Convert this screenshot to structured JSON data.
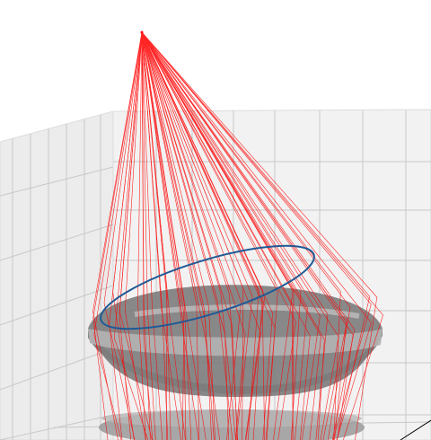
{
  "scene": {
    "description_labels": [],
    "colors": {
      "background": "#ffffff",
      "pane": "#f2f2f2",
      "grid": "#c8c8c8",
      "rays": "#ff0000",
      "lens": "#8a8a8a",
      "lens_rim": "#b4b4b4",
      "aperture_ring": "#1f5a96",
      "axis_line": "#000000"
    },
    "ray_count": 70
  }
}
